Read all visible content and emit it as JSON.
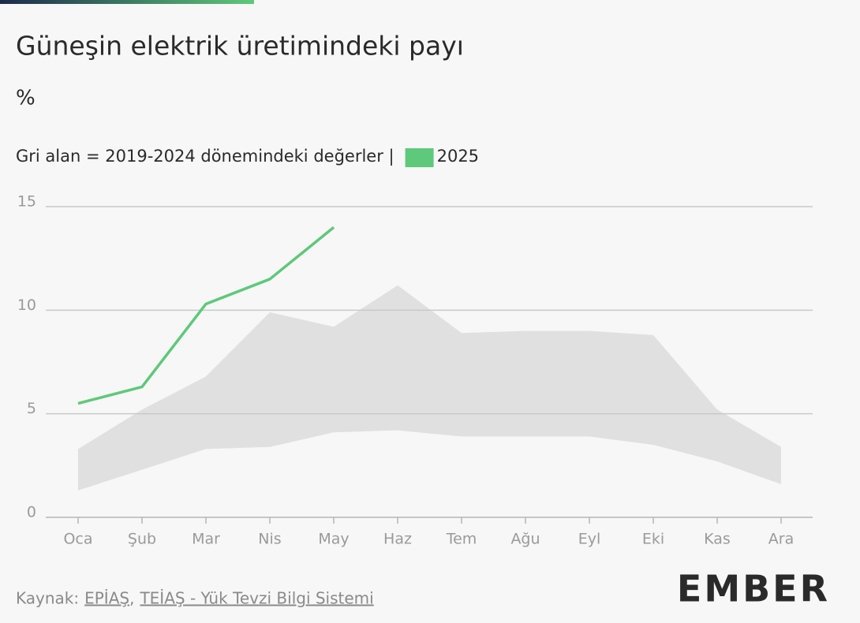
{
  "chart_data": {
    "type": "line",
    "title": "Güneşin elektrik üretimindeki payı",
    "unit": "%",
    "subtitle": "Gri alan = 2019-2024 dönemindeki değerler |",
    "categories": [
      "Oca",
      "Şub",
      "Mar",
      "Nis",
      "May",
      "Haz",
      "Tem",
      "Ağu",
      "Eyl",
      "Eki",
      "Kas",
      "Ara"
    ],
    "band": {
      "color": "#e0e0e0",
      "upper": [
        3.3,
        5.2,
        6.8,
        9.9,
        9.2,
        11.2,
        8.9,
        9.0,
        9.0,
        8.8,
        5.2,
        3.4
      ],
      "lower": [
        1.3,
        2.3,
        3.3,
        3.4,
        4.1,
        4.2,
        3.9,
        3.9,
        3.9,
        3.5,
        2.7,
        1.6
      ]
    },
    "series": [
      {
        "name": "2025",
        "color": "#5ec97a",
        "values": [
          5.5,
          6.3,
          10.3,
          11.5,
          14.0,
          null,
          null,
          null,
          null,
          null,
          null,
          null
        ]
      }
    ],
    "ylim": [
      0,
      15
    ],
    "yticks": [
      0,
      5,
      10,
      15
    ],
    "grid": true,
    "source": {
      "prefix": "Kaynak:",
      "links": [
        "EPİAŞ",
        "TEİAŞ - Yük Tevzi Bilgi Sistemi"
      ],
      "separator": ","
    },
    "logo": "EMBER"
  }
}
